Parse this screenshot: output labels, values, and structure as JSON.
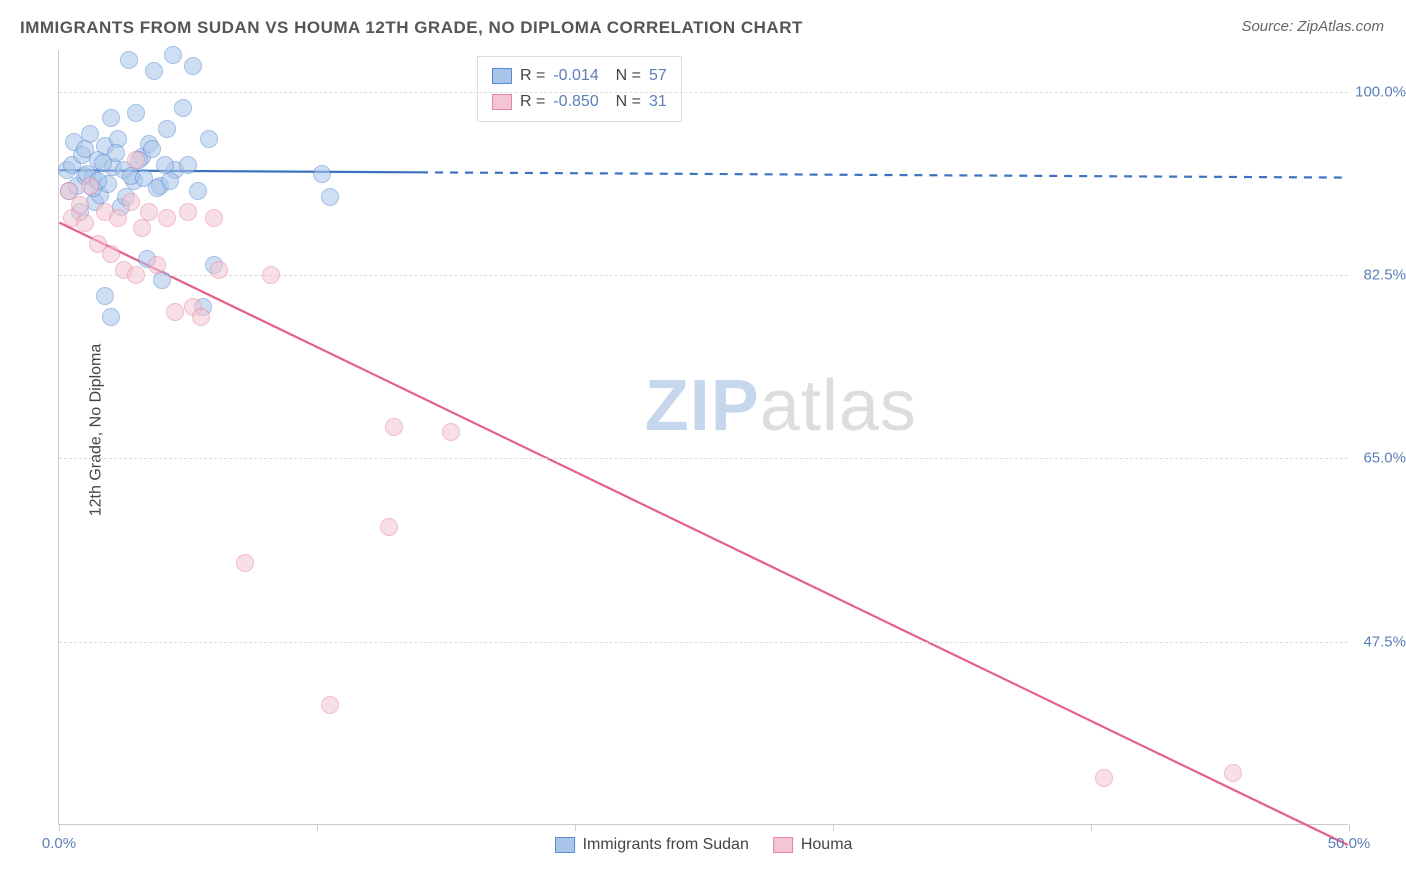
{
  "title": "IMMIGRANTS FROM SUDAN VS HOUMA 12TH GRADE, NO DIPLOMA CORRELATION CHART",
  "source": "Source: ZipAtlas.com",
  "y_axis_label": "12th Grade, No Diploma",
  "watermark": {
    "part1": "ZIP",
    "part2": "atlas"
  },
  "chart": {
    "type": "scatter",
    "xlim": [
      0,
      50
    ],
    "ylim": [
      30,
      104
    ],
    "x_ticks": [
      0,
      10,
      20,
      30,
      40,
      50
    ],
    "x_tick_labels": {
      "0": "0.0%",
      "50": "50.0%"
    },
    "y_ticks": [
      47.5,
      65.0,
      82.5,
      100.0
    ],
    "y_tick_labels": [
      "47.5%",
      "65.0%",
      "82.5%",
      "100.0%"
    ],
    "grid_color": "#dddddd",
    "background_color": "#ffffff",
    "axis_color": "#cccccc",
    "tick_label_color": "#5b7fb8",
    "marker_radius": 9,
    "marker_opacity": 0.55,
    "series": [
      {
        "name": "Immigrants from Sudan",
        "color_fill": "#a9c6ea",
        "color_stroke": "#5b8bd0",
        "R": "-0.014",
        "N": "57",
        "trend": {
          "y_at_x0": 92.5,
          "y_at_x50": 91.8,
          "solid_until_x": 14,
          "stroke": "#3d72c0",
          "width": 2.2
        },
        "points": [
          [
            0.3,
            92.5
          ],
          [
            0.4,
            90.5
          ],
          [
            0.5,
            93.0
          ],
          [
            0.6,
            95.2
          ],
          [
            0.7,
            91.0
          ],
          [
            0.8,
            88.5
          ],
          [
            0.9,
            94.0
          ],
          [
            1.0,
            92.0
          ],
          [
            1.2,
            96.0
          ],
          [
            1.3,
            91.8
          ],
          [
            1.4,
            89.5
          ],
          [
            1.5,
            93.5
          ],
          [
            1.6,
            90.2
          ],
          [
            1.8,
            94.8
          ],
          [
            1.9,
            91.2
          ],
          [
            2.0,
            97.5
          ],
          [
            2.1,
            92.8
          ],
          [
            2.3,
            95.5
          ],
          [
            2.4,
            89.0
          ],
          [
            2.5,
            92.5
          ],
          [
            2.7,
            103.0
          ],
          [
            2.9,
            91.5
          ],
          [
            3.0,
            98.0
          ],
          [
            3.2,
            93.8
          ],
          [
            3.4,
            84.0
          ],
          [
            3.5,
            95.0
          ],
          [
            3.7,
            102.0
          ],
          [
            3.9,
            91.0
          ],
          [
            4.0,
            82.0
          ],
          [
            4.2,
            96.5
          ],
          [
            4.4,
            103.5
          ],
          [
            4.5,
            92.5
          ],
          [
            4.8,
            98.5
          ],
          [
            5.0,
            93.0
          ],
          [
            5.2,
            102.5
          ],
          [
            5.4,
            90.5
          ],
          [
            5.6,
            79.5
          ],
          [
            5.8,
            95.5
          ],
          [
            1.0,
            94.5
          ],
          [
            1.1,
            92.2
          ],
          [
            1.3,
            90.8
          ],
          [
            1.5,
            91.5
          ],
          [
            1.7,
            93.2
          ],
          [
            2.2,
            94.2
          ],
          [
            2.6,
            90.0
          ],
          [
            2.8,
            92.0
          ],
          [
            3.1,
            93.5
          ],
          [
            3.3,
            91.8
          ],
          [
            3.6,
            94.5
          ],
          [
            3.8,
            90.8
          ],
          [
            4.1,
            93.0
          ],
          [
            4.3,
            91.5
          ],
          [
            1.8,
            80.5
          ],
          [
            2.0,
            78.5
          ],
          [
            10.2,
            92.2
          ],
          [
            10.5,
            90.0
          ],
          [
            6.0,
            83.5
          ]
        ]
      },
      {
        "name": "Houma",
        "color_fill": "#f4c5d2",
        "color_stroke": "#e787a3",
        "R": "-0.850",
        "N": "31",
        "trend": {
          "y_at_x0": 87.5,
          "y_at_x50": 28.0,
          "solid_until_x": 50,
          "stroke": "#e56088",
          "width": 2.2
        },
        "points": [
          [
            0.4,
            90.5
          ],
          [
            0.5,
            88.0
          ],
          [
            0.8,
            89.2
          ],
          [
            1.0,
            87.5
          ],
          [
            1.2,
            91.0
          ],
          [
            1.5,
            85.5
          ],
          [
            1.8,
            88.5
          ],
          [
            2.0,
            84.5
          ],
          [
            2.3,
            88.0
          ],
          [
            2.5,
            83.0
          ],
          [
            2.8,
            89.5
          ],
          [
            3.0,
            82.5
          ],
          [
            3.2,
            87.0
          ],
          [
            3.5,
            88.5
          ],
          [
            3.8,
            83.5
          ],
          [
            4.2,
            88.0
          ],
          [
            4.5,
            79.0
          ],
          [
            5.0,
            88.5
          ],
          [
            5.2,
            79.5
          ],
          [
            5.5,
            78.5
          ],
          [
            6.0,
            88.0
          ],
          [
            6.2,
            83.0
          ],
          [
            3.0,
            93.5
          ],
          [
            8.2,
            82.5
          ],
          [
            13.0,
            68.0
          ],
          [
            15.2,
            67.5
          ],
          [
            7.2,
            55.0
          ],
          [
            12.8,
            58.5
          ],
          [
            10.5,
            41.5
          ],
          [
            40.5,
            34.5
          ],
          [
            45.5,
            35.0
          ]
        ]
      }
    ]
  },
  "bottom_legend": [
    {
      "color_fill": "#a9c6ea",
      "color_stroke": "#5b8bd0",
      "label": "Immigrants from Sudan"
    },
    {
      "color_fill": "#f4c5d2",
      "color_stroke": "#e787a3",
      "label": "Houma"
    }
  ]
}
